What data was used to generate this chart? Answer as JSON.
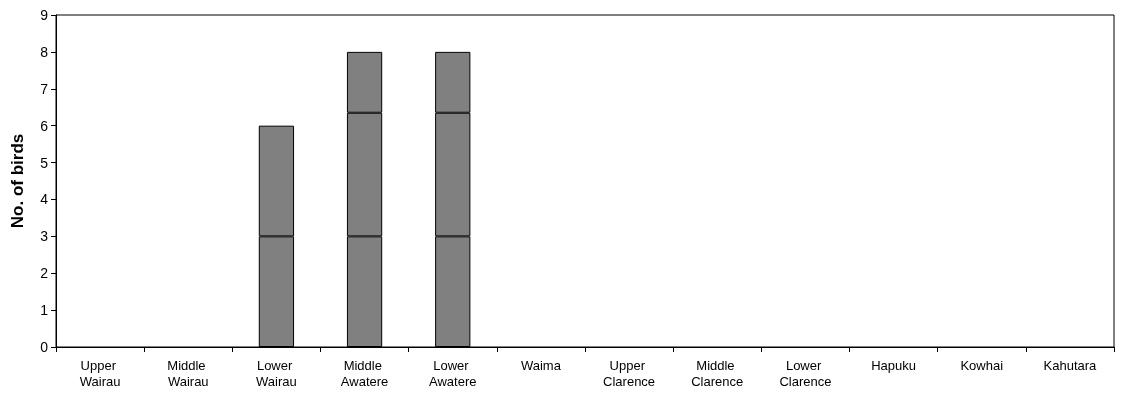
{
  "chart_data": {
    "type": "bar",
    "stacked": true,
    "ylabel": "No. of birds",
    "categories": [
      "Upper Wairau",
      "Middle Wairau",
      "Lower Wairau",
      "Middle Awatere",
      "Lower Awatere",
      "Waima",
      "Upper Clarence",
      "Middle Clarence",
      "Lower Clarence",
      "Hapuku",
      "Kowhai",
      "Kahutara"
    ],
    "series": [
      {
        "color": "#808080",
        "values": [
          0,
          0,
          3,
          3,
          3,
          0,
          0,
          0,
          0,
          0,
          0,
          0
        ]
      },
      {
        "color": "#808080",
        "values": [
          0,
          0,
          3,
          3.35,
          3.35,
          0,
          0,
          0,
          0,
          0,
          0,
          0
        ]
      },
      {
        "color": "#808080",
        "values": [
          0,
          0,
          0,
          1.65,
          1.65,
          0,
          0,
          0,
          0,
          0,
          0,
          0
        ]
      }
    ],
    "ylim": [
      0,
      9
    ],
    "yticks": [
      0,
      1,
      2,
      3,
      4,
      5,
      6,
      7,
      8,
      9
    ],
    "grid": false
  }
}
